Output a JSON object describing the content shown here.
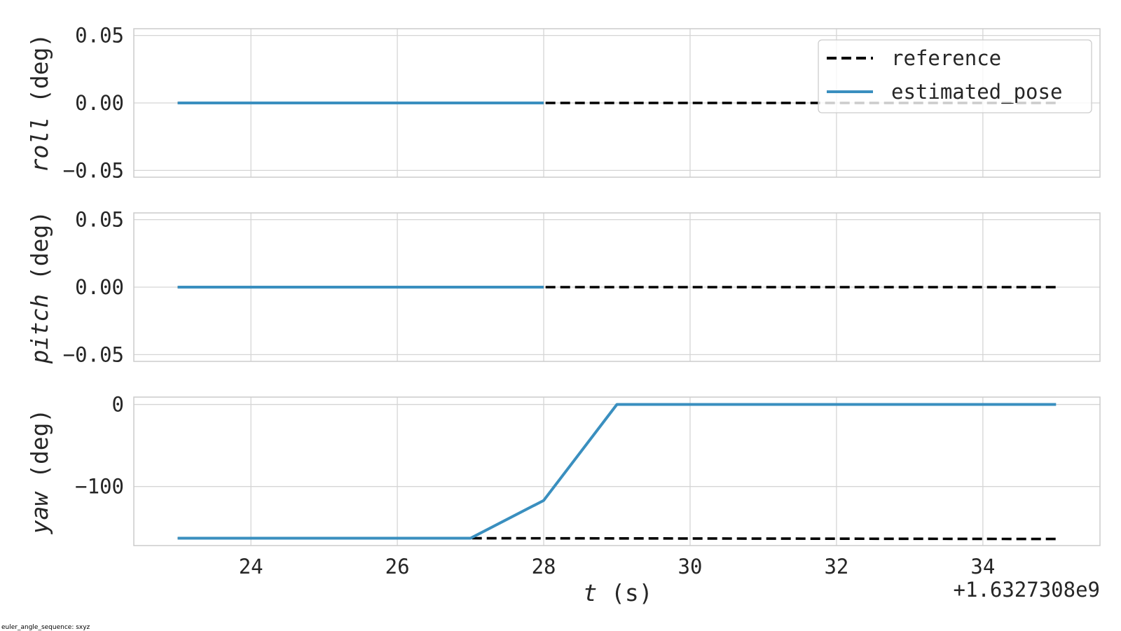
{
  "footnote": "euler_angle_sequence: sxyz",
  "chart_data": {
    "type": "line",
    "x_offset_label": "+1.6327308e9",
    "xlabel_var": "t",
    "xlabel_unit": " (s)",
    "xlim": [
      22.4,
      35.6
    ],
    "x_ticks": [
      24,
      26,
      28,
      30,
      32,
      34
    ],
    "x_tick_labels": [
      "24",
      "26",
      "28",
      "30",
      "32",
      "34"
    ],
    "legend": {
      "placement": "top-right",
      "entries": [
        {
          "label": "reference",
          "style": "dashed",
          "color": "#000000"
        },
        {
          "label": "estimated_pose",
          "style": "solid",
          "color": "#3a8fbf"
        }
      ]
    },
    "grid": true,
    "panels": [
      {
        "ylabel_var": "roll",
        "ylabel_unit": " (deg)",
        "ylim": [
          -0.055,
          0.055
        ],
        "y_ticks": [
          0.05,
          0.0,
          -0.05
        ],
        "y_tick_labels": [
          "0.05",
          "0.00",
          "−0.05"
        ],
        "series": [
          {
            "name": "reference",
            "x": [
              23,
              35
            ],
            "y": [
              0,
              0
            ]
          },
          {
            "name": "estimated_pose",
            "x": [
              23,
              28
            ],
            "y": [
              0,
              0
            ]
          }
        ]
      },
      {
        "ylabel_var": "pitch",
        "ylabel_unit": " (deg)",
        "ylim": [
          -0.055,
          0.055
        ],
        "y_ticks": [
          0.05,
          0.0,
          -0.05
        ],
        "y_tick_labels": [
          "0.05",
          "0.00",
          "−0.05"
        ],
        "series": [
          {
            "name": "reference",
            "x": [
              23,
              35
            ],
            "y": [
              0,
              0
            ]
          },
          {
            "name": "estimated_pose",
            "x": [
              23,
              28
            ],
            "y": [
              0,
              0
            ]
          }
        ]
      },
      {
        "ylabel_var": "yaw",
        "ylabel_unit": " (deg)",
        "ylim": [
          -172,
          9
        ],
        "y_ticks": [
          0,
          -100
        ],
        "y_tick_labels": [
          "0",
          "−100"
        ],
        "series": [
          {
            "name": "reference",
            "x": [
              23,
              27,
              35
            ],
            "y": [
              -163,
              -163,
              -164
            ]
          },
          {
            "name": "estimated_pose",
            "x": [
              23,
              27,
              28,
              29,
              35
            ],
            "y": [
              -163,
              -163,
              -117,
              0,
              0
            ]
          }
        ]
      }
    ]
  }
}
